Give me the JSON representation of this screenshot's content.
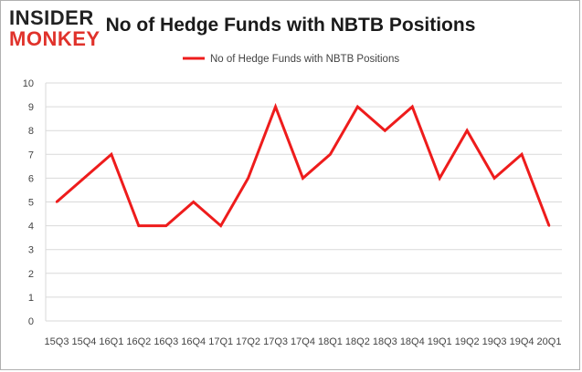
{
  "logo": {
    "line1": "INSIDER",
    "line2": "MONKEY",
    "color_line1": "#222222",
    "color_line2": "#e0322b"
  },
  "colors": {
    "series": "#ee1c1c",
    "grid": "#d9d9d9",
    "axis_text": "#444444",
    "title": "#1a1a1a",
    "border": "#b0b0b0"
  },
  "chart_data": {
    "type": "line",
    "title": "No of Hedge Funds with NBTB Positions",
    "xlabel": "",
    "ylabel": "",
    "ylim": [
      0,
      10
    ],
    "yticks": [
      0,
      1,
      2,
      3,
      4,
      5,
      6,
      7,
      8,
      9,
      10
    ],
    "categories": [
      "15Q3",
      "15Q4",
      "16Q1",
      "16Q2",
      "16Q3",
      "16Q4",
      "17Q1",
      "17Q2",
      "17Q3",
      "17Q4",
      "18Q1",
      "18Q2",
      "18Q3",
      "18Q4",
      "19Q1",
      "19Q2",
      "19Q3",
      "19Q4",
      "20Q1"
    ],
    "grid": true,
    "legend_position": "top",
    "series": [
      {
        "name": "No of Hedge Funds with NBTB Positions",
        "values": [
          5,
          6,
          7,
          4,
          4,
          5,
          4,
          6,
          9,
          6,
          7,
          9,
          8,
          9,
          6,
          8,
          6,
          7,
          4
        ]
      }
    ]
  }
}
